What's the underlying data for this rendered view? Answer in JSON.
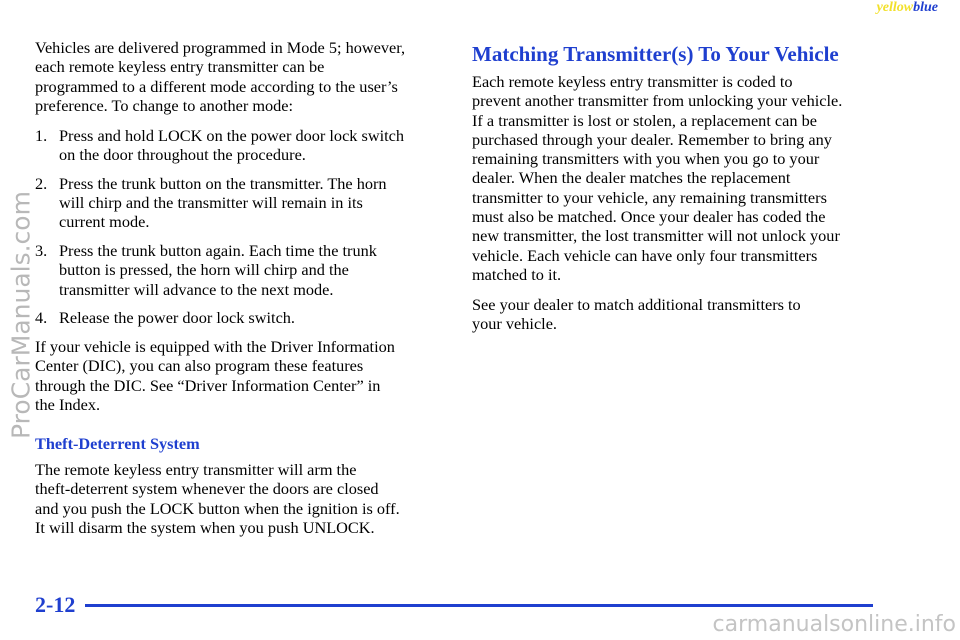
{
  "header": {
    "yellow": "yellow",
    "blue": "blue"
  },
  "left_column": {
    "intro": [
      "Vehicles are delivered programmed in Mode 5; however,",
      "each remote keyless entry transmitter can be",
      "programmed to a different mode according to the user’s",
      "preference. To change to another mode:"
    ],
    "steps": [
      {
        "number": "1.",
        "lines": [
          "Press and hold LOCK on the power door lock switch",
          "on the door throughout the procedure."
        ]
      },
      {
        "number": "2.",
        "lines": [
          "Press the trunk button on the transmitter. The horn",
          "will chirp and the transmitter will remain in its",
          "current mode."
        ]
      },
      {
        "number": "3.",
        "lines": [
          "Press the trunk button again. Each time the trunk",
          "button is pressed, the horn will chirp and the",
          "transmitter will advance to the next mode."
        ]
      },
      {
        "number": "4.",
        "lines": [
          "Release the power door lock switch."
        ]
      }
    ],
    "dic": [
      "If your vehicle is equipped with the Driver Information",
      "Center (DIC), you can also program these features",
      "through the DIC. See “Driver Information Center” in",
      "the Index."
    ],
    "heading": "Theft-Deterrent System",
    "theft": [
      "The remote keyless entry transmitter will arm the",
      "theft-deterrent system whenever the doors are closed",
      "and you push the LOCK button when the ignition is off.",
      "It will disarm the system when you push UNLOCK."
    ]
  },
  "right_column": {
    "heading": "Matching Transmitter(s) To Your Vehicle",
    "paragraph_1": [
      "Each remote keyless entry transmitter is coded to",
      "prevent another transmitter from unlocking your vehicle.",
      "If a transmitter is lost or stolen, a replacement can be",
      "purchased through your dealer. Remember to bring any",
      "remaining transmitters with you when you go to your",
      "dealer. When the dealer matches the replacement",
      "transmitter to your vehicle, any remaining transmitters",
      "must also be matched. Once your dealer has coded the",
      "new transmitter, the lost transmitter will not unlock your",
      "vehicle. Each vehicle can have only four transmitters",
      "matched to it."
    ],
    "paragraph_2": [
      "See your dealer to match additional transmitters to",
      "your vehicle."
    ]
  },
  "footer": {
    "page_number": "2-12"
  },
  "watermarks": {
    "side": "ProCarManuals.com",
    "bottom": "carmanualsonline.info"
  }
}
